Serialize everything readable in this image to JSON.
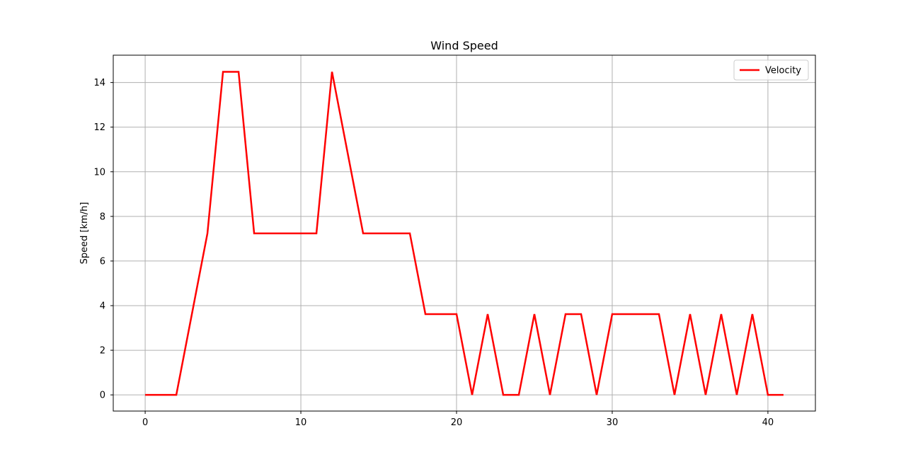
{
  "chart_data": {
    "type": "line",
    "title": "Wind Speed",
    "xlabel": "",
    "ylabel": "Speed [km/h]",
    "xlim": [
      -2.05,
      43.05
    ],
    "ylim": [
      -0.725,
      15.225
    ],
    "xticks": [
      0,
      10,
      20,
      30,
      40
    ],
    "yticks": [
      0,
      2,
      4,
      6,
      8,
      10,
      12,
      14
    ],
    "grid": true,
    "legend_position": "top-right",
    "series": [
      {
        "name": "Velocity",
        "color": "#ff0000",
        "x": [
          0,
          1,
          2,
          3,
          4,
          5,
          6,
          7,
          8,
          9,
          10,
          11,
          12,
          13,
          14,
          15,
          16,
          17,
          18,
          19,
          20,
          21,
          22,
          23,
          24,
          25,
          26,
          27,
          28,
          29,
          30,
          31,
          32,
          33,
          34,
          35,
          36,
          37,
          38,
          39,
          40,
          41
        ],
        "y": [
          0,
          0,
          0,
          3.62,
          7.24,
          14.48,
          14.48,
          7.24,
          7.24,
          7.24,
          7.24,
          7.24,
          14.48,
          10.86,
          7.24,
          7.24,
          7.24,
          7.24,
          3.62,
          3.62,
          3.62,
          0,
          3.62,
          0,
          0,
          3.62,
          0,
          3.62,
          3.62,
          0,
          3.62,
          3.62,
          3.62,
          3.62,
          0,
          3.62,
          0,
          3.62,
          0,
          3.62,
          0,
          0
        ]
      }
    ]
  }
}
